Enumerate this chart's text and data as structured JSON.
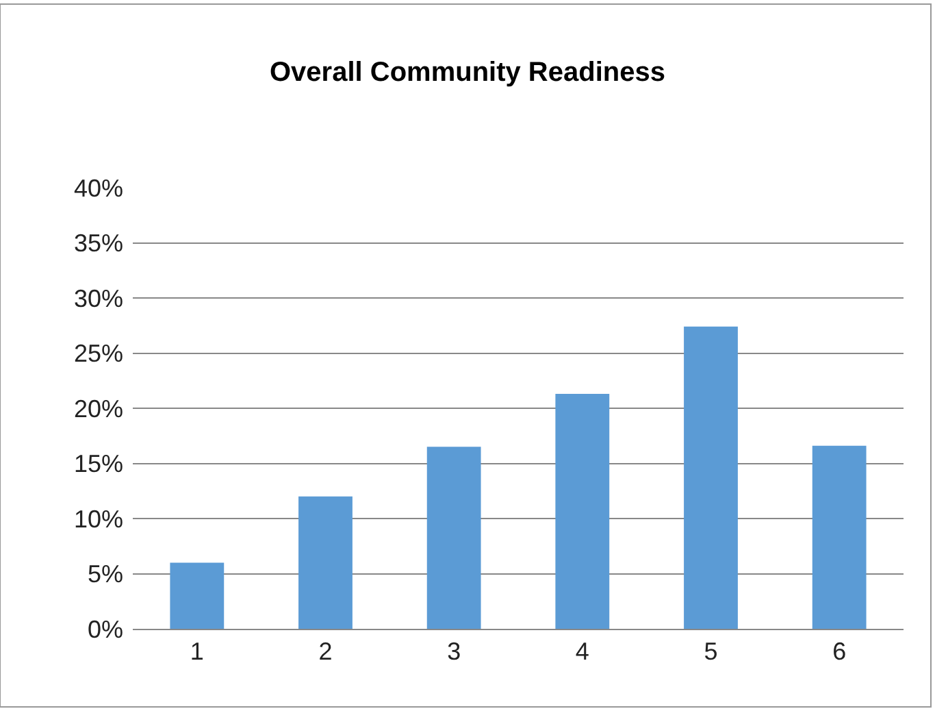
{
  "chart_data": {
    "type": "bar",
    "title": "Overall Community Readiness",
    "categories": [
      "1",
      "2",
      "3",
      "4",
      "5",
      "6"
    ],
    "values": [
      6,
      12,
      16.5,
      21.3,
      27.4,
      16.6
    ],
    "color": "#5b9bd5",
    "ylim": [
      0,
      40
    ],
    "yticks": [
      {
        "value": 0,
        "label": "0%"
      },
      {
        "value": 5,
        "label": "5%"
      },
      {
        "value": 10,
        "label": "10%"
      },
      {
        "value": 15,
        "label": "15%"
      },
      {
        "value": 20,
        "label": "20%"
      },
      {
        "value": 25,
        "label": "25%"
      },
      {
        "value": 30,
        "label": "30%"
      },
      {
        "value": 35,
        "label": "35%"
      },
      {
        "value": 40,
        "label": "40%"
      }
    ],
    "grid": "y",
    "legend": false
  }
}
